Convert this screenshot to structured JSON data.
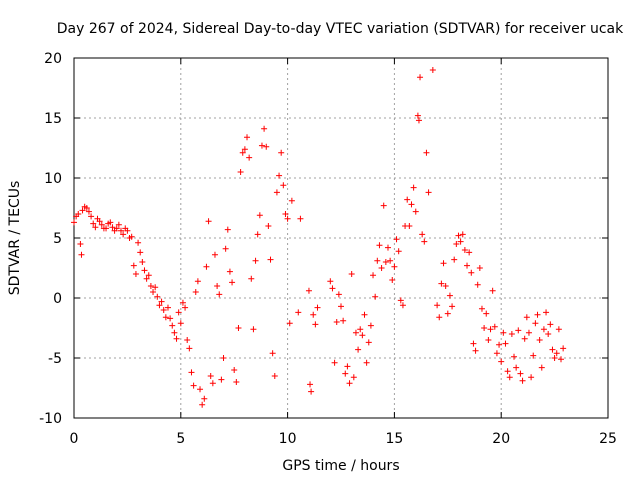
{
  "chart_data": {
    "type": "scatter",
    "title": "Day 267 of 2024, Sidereal Day-to-day VTEC variation (SDTVAR) for receiver ucak",
    "xlabel": "GPS time / hours",
    "ylabel": "SDTVAR / TECUs",
    "xlim": [
      0,
      25
    ],
    "ylim": [
      -10,
      20
    ],
    "xticks": [
      0,
      5,
      10,
      15,
      20,
      25
    ],
    "yticks": [
      -10,
      -5,
      0,
      5,
      10,
      15,
      20
    ],
    "grid": true,
    "marker": "plus",
    "series": [
      {
        "name": "ucak",
        "color": "#ff0000",
        "points": [
          [
            0.0,
            6.3
          ],
          [
            0.1,
            6.8
          ],
          [
            0.2,
            7.0
          ],
          [
            0.3,
            4.5
          ],
          [
            0.35,
            3.6
          ],
          [
            0.4,
            7.3
          ],
          [
            0.5,
            7.6
          ],
          [
            0.6,
            7.5
          ],
          [
            0.7,
            7.2
          ],
          [
            0.8,
            6.8
          ],
          [
            0.9,
            6.2
          ],
          [
            1.0,
            5.9
          ],
          [
            1.1,
            6.6
          ],
          [
            1.2,
            6.4
          ],
          [
            1.3,
            6.1
          ],
          [
            1.4,
            5.8
          ],
          [
            1.5,
            5.8
          ],
          [
            1.6,
            6.2
          ],
          [
            1.7,
            6.3
          ],
          [
            1.8,
            5.9
          ],
          [
            1.9,
            5.6
          ],
          [
            2.0,
            5.8
          ],
          [
            2.1,
            6.1
          ],
          [
            2.2,
            5.6
          ],
          [
            2.3,
            5.3
          ],
          [
            2.4,
            5.8
          ],
          [
            2.5,
            5.6
          ],
          [
            2.6,
            5.0
          ],
          [
            2.7,
            5.1
          ],
          [
            2.8,
            2.7
          ],
          [
            2.9,
            2.0
          ],
          [
            3.0,
            4.6
          ],
          [
            3.1,
            3.8
          ],
          [
            3.2,
            3.0
          ],
          [
            3.3,
            2.3
          ],
          [
            3.4,
            1.6
          ],
          [
            3.5,
            1.9
          ],
          [
            3.6,
            1.0
          ],
          [
            3.7,
            0.5
          ],
          [
            3.8,
            0.9
          ],
          [
            3.9,
            0.1
          ],
          [
            4.0,
            -0.6
          ],
          [
            4.1,
            -0.3
          ],
          [
            4.2,
            -1.0
          ],
          [
            4.3,
            -1.6
          ],
          [
            4.4,
            -0.8
          ],
          [
            4.5,
            -1.7
          ],
          [
            4.6,
            -2.3
          ],
          [
            4.7,
            -2.9
          ],
          [
            4.8,
            -3.4
          ],
          [
            4.9,
            -1.2
          ],
          [
            5.0,
            -2.1
          ],
          [
            5.1,
            -0.4
          ],
          [
            5.2,
            -0.8
          ],
          [
            5.3,
            -3.5
          ],
          [
            5.4,
            -4.2
          ],
          [
            5.5,
            -6.2
          ],
          [
            5.6,
            -7.3
          ],
          [
            5.7,
            0.5
          ],
          [
            5.8,
            1.4
          ],
          [
            5.9,
            -7.6
          ],
          [
            6.0,
            -8.9
          ],
          [
            6.1,
            -8.4
          ],
          [
            6.2,
            2.6
          ],
          [
            6.3,
            6.4
          ],
          [
            6.4,
            -6.5
          ],
          [
            6.5,
            -7.1
          ],
          [
            6.6,
            3.6
          ],
          [
            6.7,
            1.0
          ],
          [
            6.8,
            0.3
          ],
          [
            6.9,
            -6.8
          ],
          [
            7.0,
            -5.0
          ],
          [
            7.1,
            4.1
          ],
          [
            7.2,
            5.7
          ],
          [
            7.3,
            2.2
          ],
          [
            7.4,
            1.3
          ],
          [
            7.5,
            -6.0
          ],
          [
            7.6,
            -7.0
          ],
          [
            7.7,
            -2.5
          ],
          [
            7.8,
            10.5
          ],
          [
            7.9,
            12.1
          ],
          [
            8.0,
            12.4
          ],
          [
            8.1,
            13.4
          ],
          [
            8.2,
            11.7
          ],
          [
            8.3,
            1.6
          ],
          [
            8.4,
            -2.6
          ],
          [
            8.5,
            3.1
          ],
          [
            8.6,
            5.3
          ],
          [
            8.7,
            6.9
          ],
          [
            8.8,
            12.7
          ],
          [
            8.9,
            14.1
          ],
          [
            9.0,
            12.6
          ],
          [
            9.1,
            6.0
          ],
          [
            9.2,
            3.2
          ],
          [
            9.3,
            -4.6
          ],
          [
            9.4,
            -6.5
          ],
          [
            9.5,
            8.8
          ],
          [
            9.6,
            10.2
          ],
          [
            9.7,
            12.1
          ],
          [
            9.8,
            9.4
          ],
          [
            9.9,
            7.0
          ],
          [
            10.0,
            6.6
          ],
          [
            10.1,
            -2.1
          ],
          [
            10.2,
            8.1
          ],
          [
            10.5,
            -1.2
          ],
          [
            10.6,
            6.6
          ],
          [
            11.0,
            0.6
          ],
          [
            11.05,
            -7.2
          ],
          [
            11.1,
            -7.8
          ],
          [
            11.2,
            -1.4
          ],
          [
            11.3,
            -2.2
          ],
          [
            11.4,
            -0.8
          ],
          [
            12.0,
            1.4
          ],
          [
            12.1,
            0.8
          ],
          [
            12.2,
            -5.4
          ],
          [
            12.3,
            -2.0
          ],
          [
            12.4,
            0.3
          ],
          [
            12.5,
            -0.7
          ],
          [
            12.6,
            -1.9
          ],
          [
            12.7,
            -6.3
          ],
          [
            12.8,
            -5.7
          ],
          [
            12.9,
            -7.1
          ],
          [
            13.0,
            2.0
          ],
          [
            13.1,
            -6.6
          ],
          [
            13.2,
            -2.9
          ],
          [
            13.3,
            -4.3
          ],
          [
            13.4,
            -2.6
          ],
          [
            13.5,
            -3.1
          ],
          [
            13.6,
            -1.4
          ],
          [
            13.7,
            -5.4
          ],
          [
            13.8,
            -3.7
          ],
          [
            13.9,
            -2.3
          ],
          [
            14.0,
            1.9
          ],
          [
            14.1,
            0.1
          ],
          [
            14.2,
            3.1
          ],
          [
            14.3,
            4.4
          ],
          [
            14.4,
            2.5
          ],
          [
            14.5,
            7.7
          ],
          [
            14.6,
            3.0
          ],
          [
            14.7,
            4.2
          ],
          [
            14.8,
            3.1
          ],
          [
            14.9,
            1.5
          ],
          [
            15.0,
            2.6
          ],
          [
            15.1,
            4.9
          ],
          [
            15.2,
            3.9
          ],
          [
            15.3,
            -0.2
          ],
          [
            15.4,
            -0.6
          ],
          [
            15.5,
            6.0
          ],
          [
            15.6,
            8.2
          ],
          [
            15.7,
            6.0
          ],
          [
            15.8,
            7.8
          ],
          [
            15.9,
            9.2
          ],
          [
            16.0,
            7.2
          ],
          [
            16.1,
            15.2
          ],
          [
            16.15,
            14.8
          ],
          [
            16.2,
            18.4
          ],
          [
            16.3,
            5.3
          ],
          [
            16.4,
            4.7
          ],
          [
            16.5,
            12.1
          ],
          [
            16.6,
            8.8
          ],
          [
            16.8,
            19.0
          ],
          [
            17.0,
            -0.6
          ],
          [
            17.1,
            -1.6
          ],
          [
            17.2,
            1.2
          ],
          [
            17.3,
            2.9
          ],
          [
            17.4,
            1.0
          ],
          [
            17.5,
            -1.3
          ],
          [
            17.6,
            0.2
          ],
          [
            17.7,
            -0.7
          ],
          [
            17.8,
            3.2
          ],
          [
            17.9,
            4.5
          ],
          [
            18.0,
            5.2
          ],
          [
            18.1,
            4.7
          ],
          [
            18.2,
            5.3
          ],
          [
            18.3,
            4.0
          ],
          [
            18.4,
            2.7
          ],
          [
            18.5,
            3.8
          ],
          [
            18.6,
            2.1
          ],
          [
            18.7,
            -3.8
          ],
          [
            18.8,
            -4.4
          ],
          [
            18.9,
            1.1
          ],
          [
            19.0,
            2.5
          ],
          [
            19.1,
            -0.9
          ],
          [
            19.2,
            -2.5
          ],
          [
            19.3,
            -1.3
          ],
          [
            19.4,
            -3.5
          ],
          [
            19.5,
            -2.6
          ],
          [
            19.6,
            0.6
          ],
          [
            19.7,
            -2.4
          ],
          [
            19.8,
            -4.6
          ],
          [
            19.9,
            -3.9
          ],
          [
            20.0,
            -5.3
          ],
          [
            20.1,
            -2.9
          ],
          [
            20.2,
            -3.8
          ],
          [
            20.3,
            -6.1
          ],
          [
            20.4,
            -6.6
          ],
          [
            20.5,
            -3.0
          ],
          [
            20.6,
            -4.9
          ],
          [
            20.7,
            -5.8
          ],
          [
            20.8,
            -2.7
          ],
          [
            20.9,
            -6.3
          ],
          [
            21.0,
            -6.9
          ],
          [
            21.1,
            -3.4
          ],
          [
            21.2,
            -1.6
          ],
          [
            21.3,
            -2.9
          ],
          [
            21.4,
            -6.6
          ],
          [
            21.5,
            -4.8
          ],
          [
            21.6,
            -2.1
          ],
          [
            21.7,
            -1.4
          ],
          [
            21.8,
            -3.5
          ],
          [
            21.9,
            -5.8
          ],
          [
            22.0,
            -2.6
          ],
          [
            22.1,
            -1.2
          ],
          [
            22.2,
            -3.0
          ],
          [
            22.3,
            -2.2
          ],
          [
            22.4,
            -4.3
          ],
          [
            22.5,
            -5.0
          ],
          [
            22.6,
            -4.6
          ],
          [
            22.7,
            -2.6
          ],
          [
            22.8,
            -5.1
          ],
          [
            22.9,
            -4.2
          ]
        ]
      }
    ]
  }
}
